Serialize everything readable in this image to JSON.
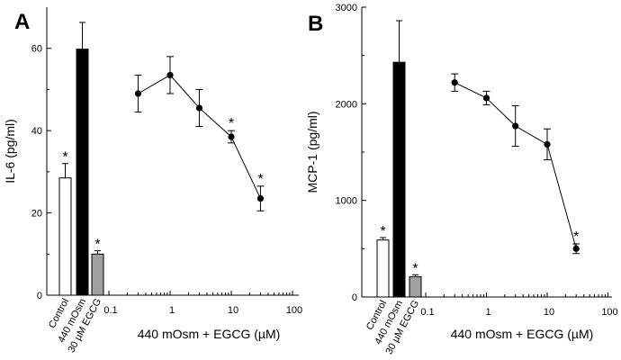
{
  "chart_data": [
    {
      "type": "bar+line",
      "panel_label": "A",
      "ylabel": "IL-6 (pg/ml)",
      "xlabel": "440 mOsm + EGCG (µM)",
      "ylim": [
        0,
        70
      ],
      "yticks": [
        0,
        20,
        40,
        60
      ],
      "x_scale": "log",
      "xlim": [
        0.1,
        100
      ],
      "xticks": [
        0.1,
        1,
        10,
        100
      ],
      "xtick_labels": [
        "0.1",
        "1",
        "10",
        "100"
      ],
      "bars": [
        {
          "label": "Control",
          "value": 28.5,
          "error": 3.5,
          "fill": "#ffffff",
          "significant": true
        },
        {
          "label": "440 mOsm",
          "value": 59.8,
          "error": 6.5,
          "fill": "#000000",
          "significant": false
        },
        {
          "label": "30 µM EGCG",
          "value": 10.0,
          "error": 0.8,
          "fill": "#a0a0a0",
          "significant": true
        }
      ],
      "series": [
        {
          "x": [
            0.3,
            1,
            3,
            10,
            30
          ],
          "y": [
            49,
            53.5,
            45.5,
            38.5,
            23.5
          ],
          "error": [
            4.5,
            4.5,
            4.5,
            1.5,
            3
          ],
          "significant": [
            false,
            false,
            false,
            true,
            true
          ]
        }
      ],
      "significance_mark": "*"
    },
    {
      "type": "bar+line",
      "panel_label": "B",
      "ylabel": "MCP-1 (pg/ml)",
      "xlabel": "440 mOsm + EGCG (µM)",
      "ylim": [
        0,
        3000
      ],
      "yticks": [
        0,
        1000,
        2000,
        3000
      ],
      "x_scale": "log",
      "xlim": [
        0.1,
        100
      ],
      "xticks": [
        0.1,
        1,
        10,
        100
      ],
      "xtick_labels": [
        "0.1",
        "1",
        "10",
        "100"
      ],
      "bars": [
        {
          "label": "Control",
          "value": 590,
          "error": 25,
          "fill": "#ffffff",
          "significant": true
        },
        {
          "label": "440 mOsm",
          "value": 2430,
          "error": 430,
          "fill": "#000000",
          "significant": false
        },
        {
          "label": "30 µM EGCG",
          "value": 210,
          "error": 20,
          "fill": "#a0a0a0",
          "significant": true
        }
      ],
      "series": [
        {
          "x": [
            0.3,
            1,
            3,
            10,
            30
          ],
          "y": [
            2220,
            2060,
            1770,
            1580,
            500
          ],
          "error": [
            90,
            70,
            210,
            160,
            50
          ],
          "significant": [
            false,
            false,
            false,
            false,
            true
          ]
        }
      ],
      "significance_mark": "*"
    }
  ]
}
